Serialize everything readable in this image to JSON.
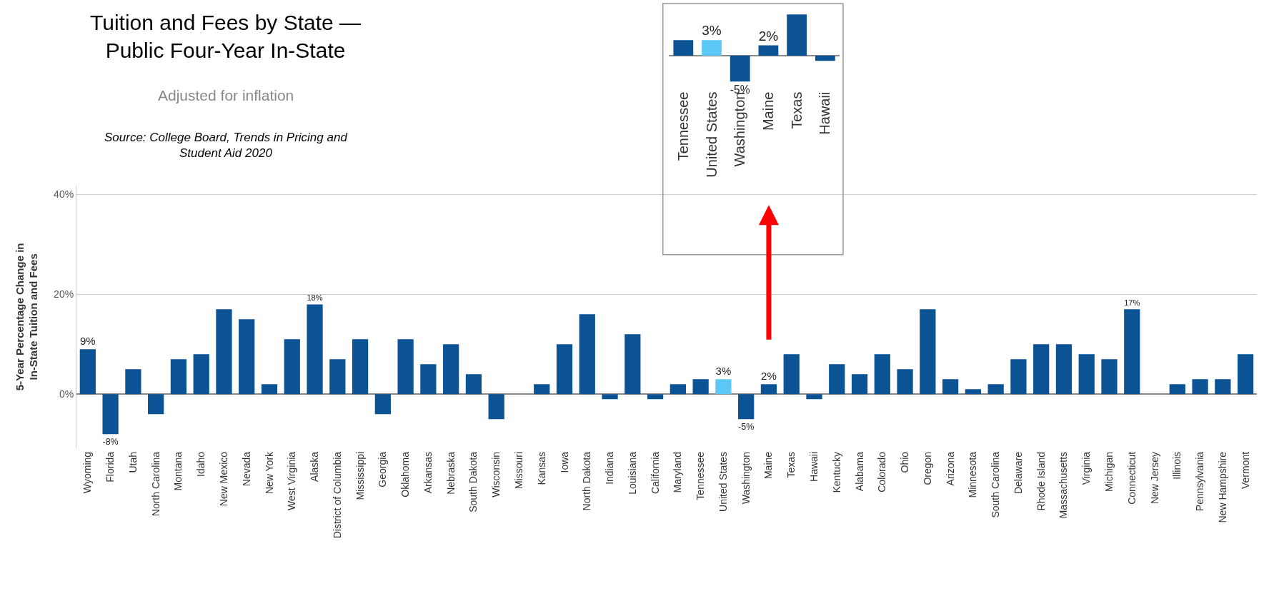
{
  "chart_data": [
    {
      "type": "bar",
      "title": "Tuition and Fees by State —\nPublic Four-Year In-State",
      "subtitle": "Adjusted for inflation",
      "annotations": [
        "Source: College Board, Trends in Pricing and\nStudent Aid 2020"
      ],
      "ylabel": "5-Year Percentage Change in\nIn-State Tuition and Fees",
      "categories": [
        "Wyoming",
        "Florida",
        "Utah",
        "North Carolina",
        "Montana",
        "Idaho",
        "New Mexico",
        "Nevada",
        "New York",
        "West Virginia",
        "Alaska",
        "District of Columbia",
        "Mississippi",
        "Georgia",
        "Oklahoma",
        "Arkansas",
        "Nebraska",
        "South Dakota",
        "Wisconsin",
        "Missouri",
        "Kansas",
        "Iowa",
        "North Dakota",
        "Indiana",
        "Louisiana",
        "California",
        "Maryland",
        "Tennessee",
        "United States",
        "Washington",
        "Maine",
        "Texas",
        "Hawaii",
        "Kentucky",
        "Alabama",
        "Colorado",
        "Ohio",
        "Oregon",
        "Arizona",
        "Minnesota",
        "South Carolina",
        "Delaware",
        "Rhode Island",
        "Massachusetts",
        "Virginia",
        "Michigan",
        "Connecticut",
        "New Jersey",
        "Illinois",
        "Pennsylvania",
        "New Hampshire",
        "Vermont"
      ],
      "values": [
        9,
        -8,
        5,
        -4,
        7,
        8,
        17,
        15,
        2,
        11,
        18,
        7,
        11,
        -4,
        11,
        6,
        10,
        4,
        -5,
        0,
        2,
        10,
        16,
        -1,
        12,
        -1,
        2,
        3,
        3,
        -5,
        2,
        8,
        -1,
        6,
        4,
        8,
        5,
        17,
        3,
        1,
        2,
        7,
        10,
        10,
        8,
        7,
        17,
        0,
        2,
        3,
        3,
        8
      ],
      "value_labels": [
        "9%",
        "-8%",
        null,
        null,
        null,
        null,
        null,
        null,
        null,
        null,
        "18%",
        null,
        null,
        null,
        null,
        null,
        null,
        null,
        null,
        null,
        null,
        null,
        null,
        null,
        null,
        null,
        null,
        null,
        "3%",
        "-5%",
        "2%",
        null,
        null,
        null,
        null,
        null,
        null,
        null,
        null,
        null,
        null,
        null,
        null,
        null,
        null,
        null,
        "17%",
        null,
        null,
        null,
        null,
        null
      ],
      "colors": [
        "#0b5394",
        "#0b5394",
        "#0b5394",
        "#0b5394",
        "#0b5394",
        "#0b5394",
        "#0b5394",
        "#0b5394",
        "#0b5394",
        "#0b5394",
        "#0b5394",
        "#0b5394",
        "#0b5394",
        "#0b5394",
        "#0b5394",
        "#0b5394",
        "#0b5394",
        "#0b5394",
        "#0b5394",
        "#0b5394",
        "#0b5394",
        "#0b5394",
        "#0b5394",
        "#0b5394",
        "#0b5394",
        "#0b5394",
        "#0b5394",
        "#0b5394",
        "#5bc8f5",
        "#0b5394",
        "#0b5394",
        "#0b5394",
        "#0b5394",
        "#0b5394",
        "#0b5394",
        "#0b5394",
        "#0b5394",
        "#0b5394",
        "#0b5394",
        "#0b5394",
        "#0b5394",
        "#0b5394",
        "#0b5394",
        "#0b5394",
        "#0b5394",
        "#0b5394",
        "#0b5394",
        "#0b5394",
        "#0b5394",
        "#0b5394",
        "#0b5394",
        "#0b5394"
      ],
      "ylim": [
        -11,
        42
      ],
      "yticks": [
        {
          "value": 0,
          "label": "0%"
        },
        {
          "value": 20,
          "label": "20%"
        },
        {
          "value": 40,
          "label": "40%"
        }
      ],
      "grid": "y"
    },
    {
      "type": "bar",
      "categories": [
        "Tennessee",
        "United States",
        "Washington",
        "Maine",
        "Texas",
        "Hawaii"
      ],
      "values": [
        3,
        3,
        -5,
        2,
        8,
        -1
      ],
      "value_labels": [
        null,
        "3%",
        "-5%",
        "2%",
        null,
        null
      ],
      "colors": [
        "#0b5394",
        "#5bc8f5",
        "#0b5394",
        "#0b5394",
        "#0b5394",
        "#0b5394"
      ]
    }
  ]
}
